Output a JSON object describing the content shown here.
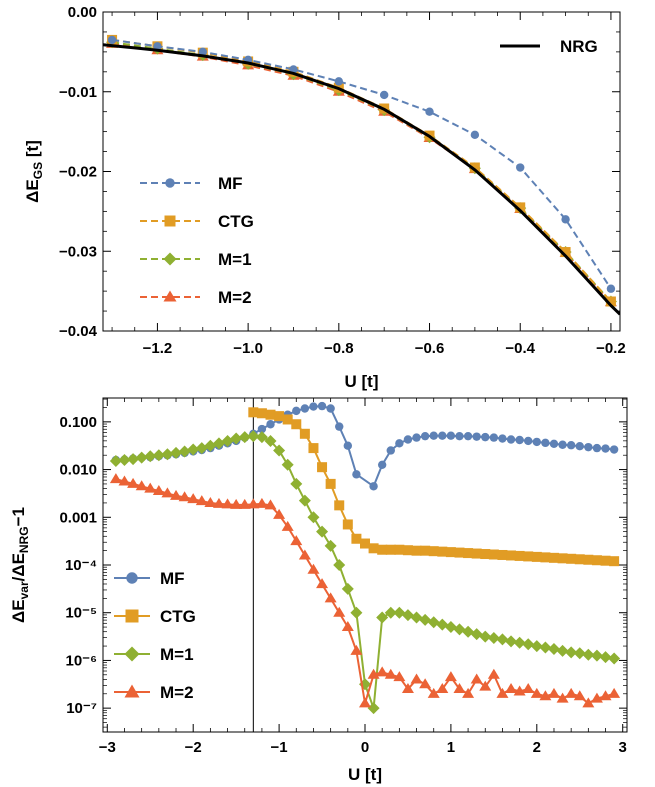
{
  "colors": {
    "MF": "#5E81B5",
    "CTG": "#E19C24",
    "M=1": "#8FB032",
    "M=2": "#EB6235",
    "NRG": "#000000"
  },
  "chart_data": [
    {
      "type": "line",
      "xlabel": "U [t]",
      "ylabel": "ΔE_GS [t]",
      "ylabel_main": "ΔE",
      "ylabel_sub": "GS",
      "ylabel_tail": " [t]",
      "xlim": [
        -1.32,
        -0.18
      ],
      "ylim": [
        -0.04,
        0.0
      ],
      "xticks": [
        -1.2,
        -1.0,
        -0.8,
        -0.6,
        -0.4,
        -0.2
      ],
      "xtick_labels": [
        "−1.2",
        "−1.0",
        "−0.8",
        "−0.6",
        "−0.4",
        "−0.2"
      ],
      "yticks": [
        0.0,
        -0.01,
        -0.02,
        -0.03,
        -0.04
      ],
      "ytick_labels": [
        "0.00",
        "−0.01",
        "−0.02",
        "−0.03",
        "−0.04"
      ],
      "legend_top_right": "NRG",
      "legend_placement": "bottom-left",
      "x": [
        -1.3,
        -1.2,
        -1.1,
        -1.0,
        -0.9,
        -0.8,
        -0.7,
        -0.6,
        -0.5,
        -0.4,
        -0.3,
        -0.2
      ],
      "series": [
        {
          "name": "MF",
          "marker": "circle",
          "dashed": true,
          "values": [
            -0.0035,
            -0.0043,
            -0.005,
            -0.006,
            -0.0072,
            -0.0087,
            -0.0104,
            -0.0125,
            -0.0154,
            -0.0195,
            -0.026,
            -0.0347
          ]
        },
        {
          "name": "CTG",
          "marker": "square",
          "dashed": true,
          "values": [
            -0.0035,
            -0.0043,
            -0.0051,
            -0.0062,
            -0.0075,
            -0.0095,
            -0.0121,
            -0.0155,
            -0.0195,
            -0.0245,
            -0.0301,
            -0.0363
          ]
        },
        {
          "name": "M=1",
          "marker": "diamond",
          "dashed": true,
          "values": [
            -0.0038,
            -0.0046,
            -0.0054,
            -0.0065,
            -0.0078,
            -0.0098,
            -0.0123,
            -0.0157,
            -0.0196,
            -0.0246,
            -0.0301,
            -0.0363
          ]
        },
        {
          "name": "M=2",
          "marker": "triangle",
          "dashed": true,
          "values": [
            -0.004,
            -0.0048,
            -0.0056,
            -0.0067,
            -0.008,
            -0.01,
            -0.0125,
            -0.0158,
            -0.0197,
            -0.0247,
            -0.0302,
            -0.0364
          ]
        },
        {
          "name": "NRG",
          "marker": "none",
          "dashed": false,
          "x": [
            -1.32,
            -1.25,
            -1.2,
            -1.1,
            -1.0,
            -0.9,
            -0.8,
            -0.7,
            -0.6,
            -0.5,
            -0.4,
            -0.3,
            -0.2,
            -0.18
          ],
          "values": [
            -0.0041,
            -0.0045,
            -0.0048,
            -0.0055,
            -0.0064,
            -0.0077,
            -0.0096,
            -0.0122,
            -0.0156,
            -0.0198,
            -0.0249,
            -0.0306,
            -0.0368,
            -0.0379
          ]
        }
      ]
    },
    {
      "type": "line",
      "scale_y": "log",
      "xlabel": "U [t]",
      "ylabel": "ΔE_var/ΔE_NRG−1",
      "ylabel_parts": [
        {
          "t": "ΔE",
          "sub": false
        },
        {
          "t": "var",
          "sub": true
        },
        {
          "t": "/ΔE",
          "sub": false
        },
        {
          "t": "NRG",
          "sub": true
        },
        {
          "t": "−1",
          "sub": false
        }
      ],
      "xlim": [
        -3.05,
        3.05
      ],
      "ylim_log10": [
        -7.5,
        -0.5
      ],
      "xticks": [
        -3,
        -2,
        -1,
        0,
        1,
        2,
        3
      ],
      "xtick_labels": [
        "−3",
        "−2",
        "−1",
        "0",
        "1",
        "2",
        "3"
      ],
      "yticks_log10": [
        -1,
        -2,
        -3,
        -4,
        -5,
        -6,
        -7
      ],
      "ytick_labels": [
        "0.100",
        "0.010",
        "0.001",
        "10⁻⁴",
        "10⁻⁵",
        "10⁻⁶",
        "10⁻⁷"
      ],
      "vertical_line_x": -1.3,
      "legend_placement": "bottom-left",
      "x": [
        -2.9,
        -2.8,
        -2.7,
        -2.6,
        -2.5,
        -2.4,
        -2.3,
        -2.2,
        -2.1,
        -2.0,
        -1.9,
        -1.8,
        -1.7,
        -1.6,
        -1.5,
        -1.4,
        -1.3,
        -1.2,
        -1.1,
        -1.0,
        -0.9,
        -0.8,
        -0.7,
        -0.6,
        -0.5,
        -0.4,
        -0.3,
        -0.2,
        -0.1,
        0.0,
        0.1,
        0.2,
        0.3,
        0.4,
        0.5,
        0.6,
        0.7,
        0.8,
        0.9,
        1.0,
        1.1,
        1.2,
        1.3,
        1.4,
        1.5,
        1.6,
        1.7,
        1.8,
        1.9,
        2.0,
        2.1,
        2.2,
        2.3,
        2.4,
        2.5,
        2.6,
        2.7,
        2.8,
        2.9
      ],
      "series": [
        {
          "name": "MF",
          "marker": "circle",
          "x": [
            -2.9,
            -2.8,
            -2.7,
            -2.6,
            -2.5,
            -2.4,
            -2.3,
            -2.2,
            -2.1,
            -2.0,
            -1.9,
            -1.8,
            -1.7,
            -1.6,
            -1.5,
            -1.4,
            -1.3,
            -1.2,
            -1.1,
            -1.0,
            -0.9,
            -0.8,
            -0.7,
            -0.6,
            -0.5,
            -0.4,
            -0.3,
            -0.2,
            -0.1,
            0.1,
            0.2,
            0.3,
            0.4,
            0.5,
            0.6,
            0.7,
            0.8,
            0.9,
            1.0,
            1.1,
            1.2,
            1.3,
            1.4,
            1.5,
            1.6,
            1.7,
            1.8,
            1.9,
            2.0,
            2.1,
            2.2,
            2.3,
            2.4,
            2.5,
            2.6,
            2.7,
            2.8,
            2.9
          ],
          "values_log10": [
            -1.8,
            -1.79,
            -1.77,
            -1.75,
            -1.74,
            -1.72,
            -1.7,
            -1.68,
            -1.65,
            -1.62,
            -1.59,
            -1.55,
            -1.5,
            -1.45,
            -1.4,
            -1.33,
            -1.25,
            -1.15,
            -1.05,
            -0.95,
            -0.85,
            -0.77,
            -0.72,
            -0.68,
            -0.67,
            -0.72,
            -1.1,
            -1.5,
            -2.1,
            -2.35,
            -1.9,
            -1.6,
            -1.45,
            -1.37,
            -1.33,
            -1.3,
            -1.29,
            -1.29,
            -1.29,
            -1.3,
            -1.3,
            -1.31,
            -1.32,
            -1.33,
            -1.35,
            -1.37,
            -1.38,
            -1.4,
            -1.42,
            -1.44,
            -1.46,
            -1.48,
            -1.49,
            -1.51,
            -1.53,
            -1.55,
            -1.56,
            -1.58
          ]
        },
        {
          "name": "CTG",
          "marker": "square",
          "x": [
            -1.3,
            -1.2,
            -1.1,
            -1.0,
            -0.9,
            -0.8,
            -0.7,
            -0.6,
            -0.5,
            -0.4,
            -0.3,
            -0.2,
            -0.1,
            0.0,
            0.1,
            0.2,
            0.3,
            0.4,
            0.5,
            0.6,
            0.7,
            0.8,
            0.9,
            1.0,
            1.1,
            1.2,
            1.3,
            1.4,
            1.5,
            1.6,
            1.7,
            1.8,
            1.9,
            2.0,
            2.1,
            2.2,
            2.3,
            2.4,
            2.5,
            2.6,
            2.7,
            2.8,
            2.9
          ],
          "values_log10": [
            -0.8,
            -0.82,
            -0.85,
            -0.88,
            -0.95,
            -1.05,
            -1.25,
            -1.55,
            -1.95,
            -2.3,
            -2.75,
            -3.15,
            -3.45,
            -3.55,
            -3.65,
            -3.68,
            -3.68,
            -3.68,
            -3.69,
            -3.7,
            -3.7,
            -3.71,
            -3.72,
            -3.73,
            -3.74,
            -3.75,
            -3.76,
            -3.77,
            -3.78,
            -3.79,
            -3.8,
            -3.81,
            -3.82,
            -3.83,
            -3.84,
            -3.85,
            -3.86,
            -3.87,
            -3.88,
            -3.89,
            -3.9,
            -3.91,
            -3.92
          ]
        },
        {
          "name": "M=1",
          "marker": "diamond",
          "x": [
            -2.9,
            -2.8,
            -2.7,
            -2.6,
            -2.5,
            -2.4,
            -2.3,
            -2.2,
            -2.1,
            -2.0,
            -1.9,
            -1.8,
            -1.7,
            -1.6,
            -1.5,
            -1.4,
            -1.3,
            -1.2,
            -1.1,
            -1.0,
            -0.9,
            -0.8,
            -0.7,
            -0.6,
            -0.5,
            -0.4,
            -0.3,
            -0.2,
            -0.1,
            0.0,
            0.1,
            0.2,
            0.3,
            0.4,
            0.5,
            0.6,
            0.7,
            0.8,
            0.9,
            1.0,
            1.1,
            1.2,
            1.3,
            1.4,
            1.5,
            1.6,
            1.7,
            1.8,
            1.9,
            2.0,
            2.1,
            2.2,
            2.3,
            2.4,
            2.5,
            2.6,
            2.7,
            2.8,
            2.9
          ],
          "values_log10": [
            -1.82,
            -1.8,
            -1.78,
            -1.75,
            -1.72,
            -1.7,
            -1.68,
            -1.65,
            -1.62,
            -1.58,
            -1.55,
            -1.5,
            -1.45,
            -1.4,
            -1.35,
            -1.32,
            -1.3,
            -1.32,
            -1.4,
            -1.6,
            -1.9,
            -2.3,
            -2.65,
            -3.0,
            -3.3,
            -3.6,
            -4.0,
            -4.5,
            -5.0,
            -6.5,
            -7.0,
            -5.1,
            -5.0,
            -5.0,
            -5.05,
            -5.1,
            -5.15,
            -5.2,
            -5.25,
            -5.3,
            -5.35,
            -5.4,
            -5.45,
            -5.5,
            -5.53,
            -5.56,
            -5.6,
            -5.63,
            -5.66,
            -5.7,
            -5.73,
            -5.76,
            -5.8,
            -5.83,
            -5.85,
            -5.88,
            -5.9,
            -5.93,
            -5.96
          ]
        },
        {
          "name": "M=2",
          "marker": "triangle",
          "x": [
            -2.9,
            -2.8,
            -2.7,
            -2.6,
            -2.5,
            -2.4,
            -2.3,
            -2.2,
            -2.1,
            -2.0,
            -1.9,
            -1.8,
            -1.7,
            -1.6,
            -1.5,
            -1.4,
            -1.3,
            -1.2,
            -1.1,
            -1.0,
            -0.9,
            -0.8,
            -0.7,
            -0.6,
            -0.5,
            -0.4,
            -0.3,
            -0.2,
            -0.1,
            0.0,
            0.1,
            0.2,
            0.3,
            0.4,
            0.5,
            0.6,
            0.7,
            0.8,
            0.9,
            1.0,
            1.1,
            1.2,
            1.3,
            1.4,
            1.5,
            1.6,
            1.7,
            1.8,
            1.9,
            2.0,
            2.1,
            2.2,
            2.3,
            2.4,
            2.5,
            2.6,
            2.7,
            2.8,
            2.9
          ],
          "values_log10": [
            -2.2,
            -2.25,
            -2.3,
            -2.35,
            -2.4,
            -2.45,
            -2.5,
            -2.55,
            -2.58,
            -2.62,
            -2.66,
            -2.7,
            -2.72,
            -2.73,
            -2.74,
            -2.74,
            -2.73,
            -2.72,
            -2.75,
            -2.95,
            -3.2,
            -3.5,
            -3.8,
            -4.1,
            -4.4,
            -4.7,
            -5.0,
            -5.3,
            -5.8,
            -6.9,
            -6.3,
            -6.25,
            -6.3,
            -6.35,
            -6.6,
            -6.4,
            -6.5,
            -6.7,
            -6.6,
            -6.35,
            -6.6,
            -6.7,
            -6.4,
            -6.55,
            -6.3,
            -6.7,
            -6.6,
            -6.65,
            -6.6,
            -6.7,
            -6.75,
            -6.7,
            -6.8,
            -6.7,
            -6.75,
            -6.9,
            -6.8,
            -6.75,
            -6.7
          ]
        }
      ]
    }
  ]
}
